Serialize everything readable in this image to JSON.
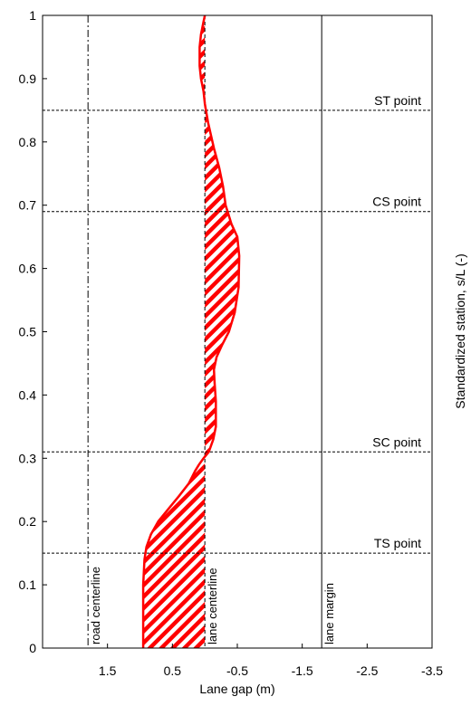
{
  "chart_data": {
    "type": "line",
    "xlabel": "Lane gap (m)",
    "ylabel": "Standardized  station, s/L (-)",
    "x_axis_reversed": true,
    "xlim": [
      2.5,
      -3.5
    ],
    "ylim": [
      0,
      1
    ],
    "x_ticks": [
      1.5,
      0.5,
      -0.5,
      -1.5,
      -2.5,
      -3.5
    ],
    "x_tick_labels": [
      "1.5",
      "0.5",
      "-0.5",
      "-1.5",
      "-2.5",
      "-3.5"
    ],
    "y_ticks": [
      0,
      0.1,
      0.2,
      0.3,
      0.4,
      0.5,
      0.6,
      0.7,
      0.8,
      0.9,
      1
    ],
    "y_tick_labels": [
      "0",
      "0.1",
      "0.2",
      "0.3",
      "0.4",
      "0.5",
      "0.6",
      "0.7",
      "0.8",
      "0.9",
      "1"
    ],
    "grid": false,
    "vertical_lines": [
      {
        "x": 1.8,
        "label": "road centerline",
        "style": "dashdot",
        "color": "#000000"
      },
      {
        "x": 0.0,
        "label": "lane centerline",
        "style": "dashed",
        "color": "#000000"
      },
      {
        "x": -1.8,
        "label": "lane margin",
        "style": "solid",
        "color": "#000000"
      }
    ],
    "horizontal_markers": [
      {
        "y": 0.15,
        "label": "TS point"
      },
      {
        "y": 0.31,
        "label": "SC point"
      },
      {
        "y": 0.69,
        "label": "CS point"
      },
      {
        "y": 0.85,
        "label": "ST point"
      }
    ],
    "series": [
      {
        "color": "#ff0000",
        "fill": "hatched",
        "x": [
          0.95,
          0.95,
          0.95,
          0.93,
          0.9,
          0.83,
          0.72,
          0.56,
          0.4,
          0.25,
          0.15,
          0.09,
          0.02,
          -0.06,
          -0.13,
          -0.17,
          -0.17,
          -0.15,
          -0.14,
          -0.18,
          -0.27,
          -0.37,
          -0.46,
          -0.52,
          -0.53,
          -0.5,
          -0.41,
          -0.32,
          -0.28,
          -0.22,
          -0.14,
          -0.05,
          0.0,
          0.02,
          0.06,
          0.08,
          0.08,
          0.06,
          0.02,
          0.0
        ],
        "y": [
          0.0,
          0.05,
          0.1,
          0.14,
          0.16,
          0.18,
          0.2,
          0.22,
          0.24,
          0.26,
          0.28,
          0.29,
          0.3,
          0.31,
          0.33,
          0.35,
          0.39,
          0.42,
          0.44,
          0.46,
          0.48,
          0.5,
          0.53,
          0.57,
          0.62,
          0.65,
          0.67,
          0.7,
          0.73,
          0.76,
          0.79,
          0.83,
          0.86,
          0.88,
          0.9,
          0.92,
          0.95,
          0.97,
          0.99,
          1.0
        ]
      }
    ]
  }
}
